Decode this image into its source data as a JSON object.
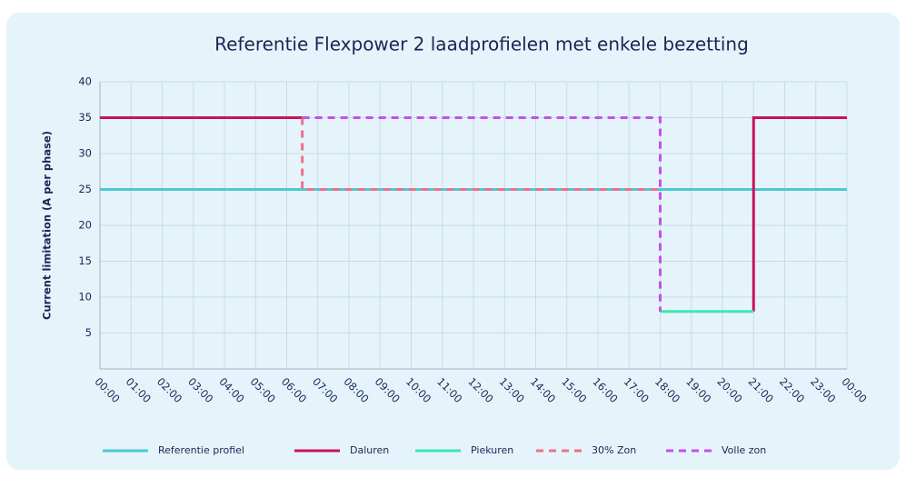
{
  "chart_data": {
    "type": "line",
    "title": "Referentie Flexpower 2 laadprofielen met enkele bezetting",
    "y_label": "Current limitation (A per phase)",
    "xlim": [
      0,
      24
    ],
    "xticks": [
      {
        "value": 0,
        "label": "00:00"
      },
      {
        "value": 1,
        "label": "01:00"
      },
      {
        "value": 2,
        "label": "02:00"
      },
      {
        "value": 3,
        "label": "03:00"
      },
      {
        "value": 4,
        "label": "04:00"
      },
      {
        "value": 5,
        "label": "05:00"
      },
      {
        "value": 6,
        "label": "06:00"
      },
      {
        "value": 7,
        "label": "07:00"
      },
      {
        "value": 8,
        "label": "08:00"
      },
      {
        "value": 9,
        "label": "09:00"
      },
      {
        "value": 10,
        "label": "10:00"
      },
      {
        "value": 11,
        "label": "11:00"
      },
      {
        "value": 12,
        "label": "12:00"
      },
      {
        "value": 13,
        "label": "13:00"
      },
      {
        "value": 14,
        "label": "14:00"
      },
      {
        "value": 15,
        "label": "15:00"
      },
      {
        "value": 16,
        "label": "16:00"
      },
      {
        "value": 17,
        "label": "17:00"
      },
      {
        "value": 18,
        "label": "18:00"
      },
      {
        "value": 19,
        "label": "19:00"
      },
      {
        "value": 20,
        "label": "20:00"
      },
      {
        "value": 21,
        "label": "21:00"
      },
      {
        "value": 22,
        "label": "22:00"
      },
      {
        "value": 23,
        "label": "23:00"
      },
      {
        "value": 24,
        "label": "00:00"
      }
    ],
    "ylim": [
      0,
      40
    ],
    "yticks": [
      5,
      10,
      15,
      20,
      25,
      30,
      35,
      40
    ],
    "grid": true,
    "legend": "bottom",
    "series": [
      {
        "name": "Referentie profiel",
        "color": "#4cc8d6",
        "dash": false,
        "x": [
          0,
          24
        ],
        "values": [
          25,
          25
        ]
      },
      {
        "name": "Daluren",
        "color": "#c8125a",
        "dash": false,
        "x": [
          0,
          6.5,
          null,
          21,
          21,
          24
        ],
        "values": [
          35,
          35,
          null,
          8,
          35,
          35
        ]
      },
      {
        "name": "Piekuren",
        "color": "#3fe6b2",
        "dash": false,
        "x": [
          18,
          21
        ],
        "values": [
          8,
          8
        ]
      },
      {
        "name": "30% Zon",
        "color": "#f0708a",
        "dash": true,
        "x": [
          6.5,
          6.5,
          18,
          18
        ],
        "values": [
          35,
          25,
          25,
          8
        ]
      },
      {
        "name": "Volle zon",
        "color": "#c64ef0",
        "dash": true,
        "x": [
          6.5,
          18,
          18
        ],
        "values": [
          35,
          35,
          8
        ]
      }
    ]
  }
}
